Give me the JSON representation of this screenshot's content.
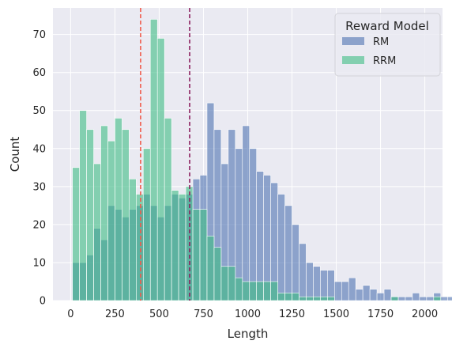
{
  "chart_data": {
    "type": "histogram",
    "xlabel": "Length",
    "ylabel": "Count",
    "xlim": [
      -100,
      2100
    ],
    "ylim": [
      0,
      77
    ],
    "xticks": [
      0,
      250,
      500,
      750,
      1000,
      1250,
      1500,
      1750,
      2000
    ],
    "yticks": [
      0,
      10,
      20,
      30,
      40,
      50,
      60,
      70
    ],
    "grid": true,
    "legend": {
      "title": "Reward Model",
      "placement": "top-right"
    },
    "bin_width": 40,
    "bin_start": 10,
    "series": [
      {
        "name": "RM",
        "color": "#4c72b0",
        "values": [
          10,
          10,
          12,
          19,
          16,
          25,
          24,
          22,
          24,
          25,
          28,
          25,
          22,
          25,
          28,
          27,
          28,
          32,
          33,
          52,
          45,
          36,
          45,
          40,
          46,
          40,
          34,
          33,
          31,
          28,
          25,
          20,
          15,
          10,
          9,
          8,
          8,
          5,
          5,
          6,
          3,
          4,
          3,
          2,
          3,
          1,
          1,
          1,
          2,
          1,
          1,
          2,
          1,
          1,
          1,
          1,
          1
        ]
      },
      {
        "name": "RRM",
        "color": "#3dbd83",
        "values": [
          35,
          50,
          45,
          36,
          46,
          42,
          48,
          45,
          32,
          28,
          40,
          74,
          69,
          48,
          29,
          28,
          30,
          24,
          24,
          17,
          14,
          9,
          9,
          6,
          5,
          5,
          5,
          5,
          5,
          2,
          2,
          2,
          1,
          1,
          1,
          1,
          1,
          0,
          0,
          0,
          0,
          0,
          0,
          0,
          0,
          1,
          0,
          0,
          0,
          0,
          0,
          1,
          0,
          0,
          0,
          0,
          0
        ]
      }
    ],
    "reference_lines": [
      {
        "x": 395,
        "color": "#f05a4a"
      },
      {
        "x": 672,
        "color": "#8b1f5e"
      }
    ]
  },
  "colors": {
    "background": "#ffffff",
    "plot_bg": "#eaeaf2",
    "grid": "#ffffff",
    "text": "#262626",
    "overlap": "#5b9a9b"
  }
}
